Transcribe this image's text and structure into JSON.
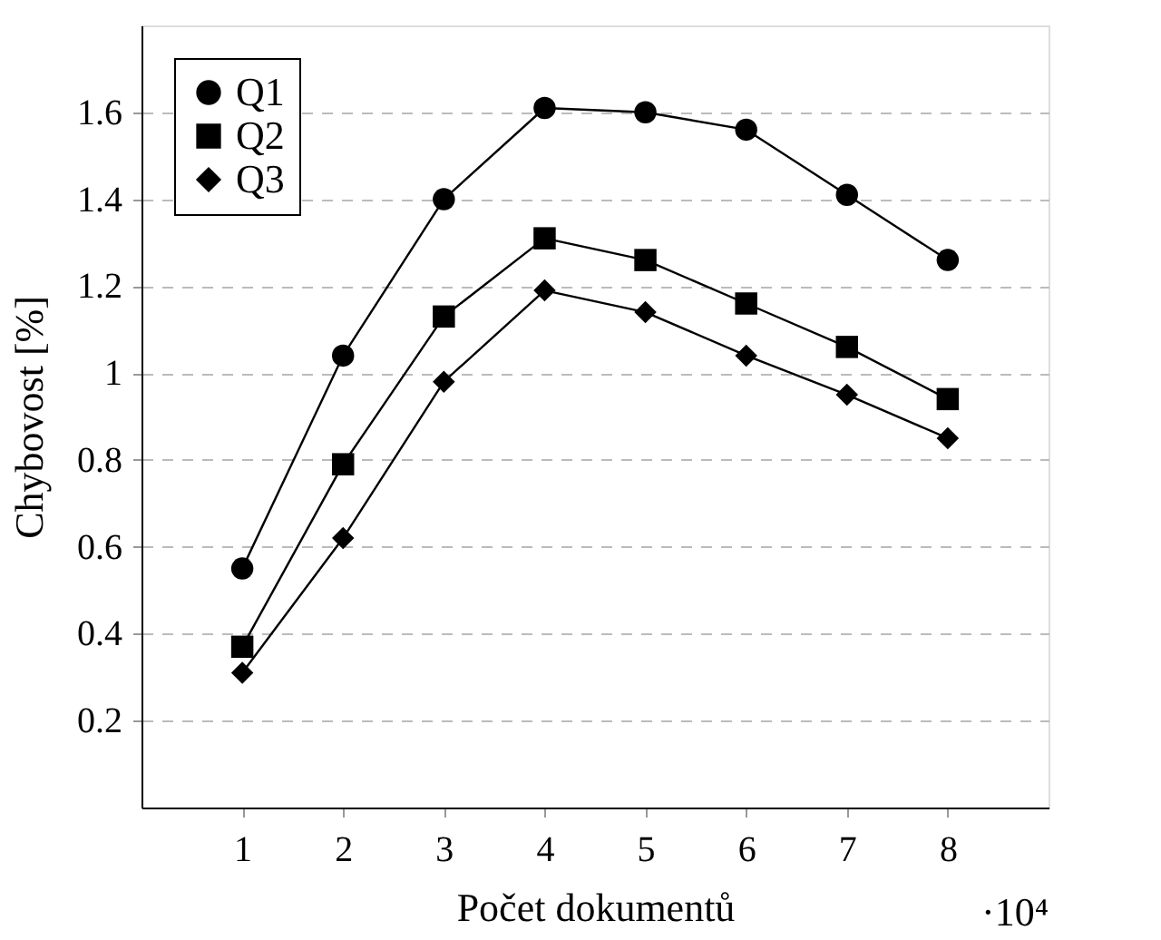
{
  "chart_data": {
    "type": "line",
    "xlabel": "Počet dokumentů",
    "ylabel": "Chybovost [%]",
    "x": [
      1,
      2,
      3,
      4,
      5,
      6,
      7,
      8
    ],
    "series": [
      {
        "name": "Q1",
        "color": "#000000",
        "marker": "circle",
        "values": [
          0.55,
          1.04,
          1.4,
          1.61,
          1.6,
          1.56,
          1.41,
          1.26
        ]
      },
      {
        "name": "Q2",
        "color": "#000000",
        "marker": "square",
        "values": [
          0.37,
          0.79,
          1.13,
          1.31,
          1.26,
          1.16,
          1.06,
          0.94
        ]
      },
      {
        "name": "Q3",
        "color": "#000000",
        "marker": "diamond",
        "values": [
          0.31,
          0.62,
          0.98,
          1.19,
          1.14,
          1.04,
          0.95,
          0.85
        ]
      }
    ],
    "xlim": [
      0,
      9
    ],
    "ylim": [
      0,
      1.8
    ],
    "xticks": [
      1,
      2,
      3,
      4,
      5,
      6,
      7,
      8
    ],
    "yticks": [
      0.2,
      0.4,
      0.6,
      0.8,
      {
        "value": 1,
        "label": "1"
      },
      1.2,
      1.4,
      1.6
    ],
    "grid": "y",
    "legend": "top left",
    "line_style": "solid",
    "annotations": [
      "·10⁴"
    ]
  }
}
